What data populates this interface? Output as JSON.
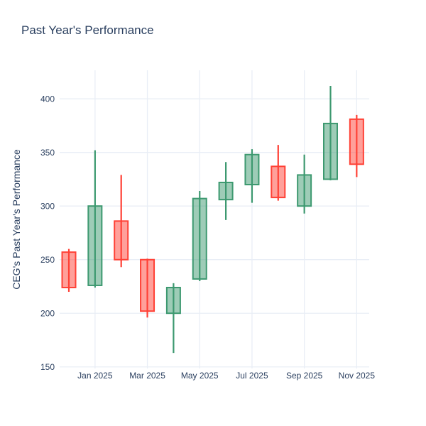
{
  "chart_data": {
    "type": "candlestick",
    "title": "Past Year's Performance",
    "ylabel": "CEG's Past Year's Performance",
    "xlabel": "",
    "categories": [
      "Dec 2024",
      "Jan 2025",
      "Feb 2025",
      "Mar 2025",
      "Apr 2025",
      "May 2025",
      "Jun 2025",
      "Jul 2025",
      "Aug 2025",
      "Sep 2025",
      "Oct 2025",
      "Nov 2025"
    ],
    "candles": [
      {
        "x": "Dec 2024",
        "open": 257,
        "high": 260,
        "low": 220,
        "close": 224
      },
      {
        "x": "Jan 2025",
        "open": 226,
        "high": 352,
        "low": 224,
        "close": 300
      },
      {
        "x": "Feb 2025",
        "open": 286,
        "high": 329,
        "low": 243,
        "close": 250
      },
      {
        "x": "Mar 2025",
        "open": 250,
        "high": 251,
        "low": 196,
        "close": 202
      },
      {
        "x": "Apr 2025",
        "open": 200,
        "high": 228,
        "low": 163,
        "close": 224
      },
      {
        "x": "May 2025",
        "open": 232,
        "high": 314,
        "low": 230,
        "close": 307
      },
      {
        "x": "Jun 2025",
        "open": 306,
        "high": 341,
        "low": 287,
        "close": 322
      },
      {
        "x": "Jul 2025",
        "open": 320,
        "high": 353,
        "low": 303,
        "close": 348
      },
      {
        "x": "Aug 2025",
        "open": 337,
        "high": 357,
        "low": 305,
        "close": 308
      },
      {
        "x": "Sep 2025",
        "open": 300,
        "high": 348,
        "low": 293,
        "close": 329
      },
      {
        "x": "Oct 2025",
        "open": 325,
        "high": 412,
        "low": 324,
        "close": 377
      },
      {
        "x": "Nov 2025",
        "open": 381,
        "high": 385,
        "low": 327,
        "close": 339
      }
    ],
    "yticks": [
      150,
      200,
      250,
      300,
      350,
      400
    ],
    "xtick_labels": [
      "Jan 2025",
      "Mar 2025",
      "May 2025",
      "Jul 2025",
      "Sep 2025",
      "Nov 2025"
    ],
    "xtick_indices": [
      1,
      3,
      5,
      7,
      9,
      11
    ],
    "ylim": [
      148.5,
      426.6
    ],
    "grid": true,
    "legend_position": "none",
    "colors": {
      "increasing": "#3D9970",
      "decreasing": "#FF4136",
      "grid": "#E9EEF6",
      "font": "#2A3F5F",
      "background": "#FFFFFF"
    }
  }
}
